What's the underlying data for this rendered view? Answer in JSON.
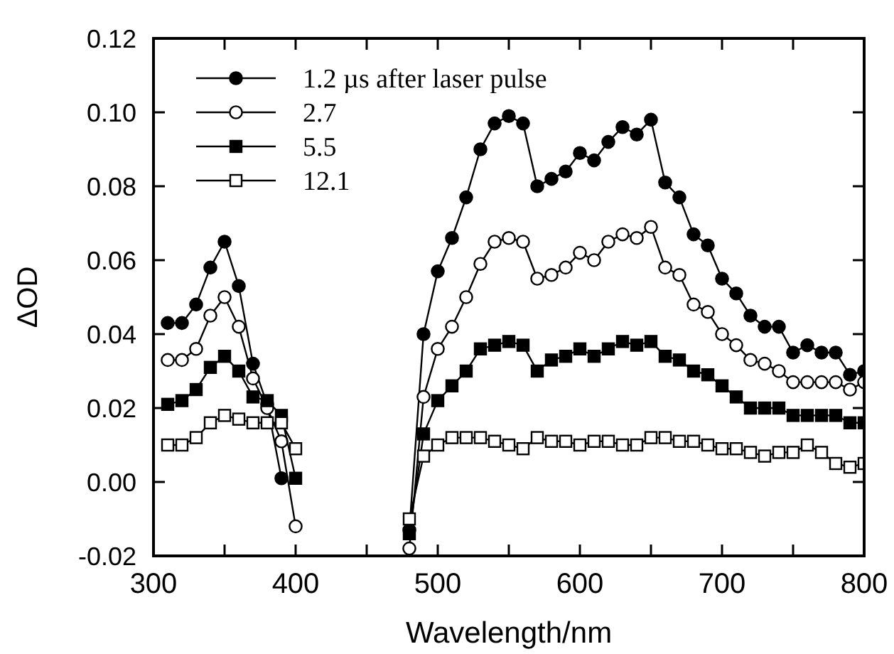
{
  "chart_data": {
    "type": "line",
    "xlabel": "Wavelength/nm",
    "ylabel": "ΔOD",
    "x": [
      310,
      320,
      330,
      340,
      350,
      360,
      370,
      380,
      390,
      400,
      440,
      480,
      490,
      500,
      510,
      520,
      530,
      540,
      550,
      560,
      570,
      580,
      590,
      600,
      610,
      620,
      630,
      640,
      650,
      660,
      670,
      680,
      690,
      700,
      710,
      720,
      730,
      740,
      750,
      760,
      770,
      780,
      790,
      800
    ],
    "series": [
      {
        "name": "1.2 µs after laser pulse",
        "color": "#000000",
        "marker": "circle",
        "values": [
          0.043,
          0.043,
          0.048,
          0.058,
          0.065,
          0.053,
          0.032,
          0.021,
          0.001,
          null,
          null,
          -0.013,
          0.04,
          0.057,
          0.066,
          0.077,
          0.09,
          0.097,
          0.099,
          0.097,
          0.08,
          0.082,
          0.084,
          0.089,
          0.087,
          0.092,
          0.096,
          0.094,
          0.098,
          0.081,
          0.077,
          0.067,
          0.064,
          0.055,
          0.051,
          0.045,
          0.042,
          0.042,
          0.035,
          0.037,
          0.035,
          0.035,
          0.029,
          0.03
        ]
      },
      {
        "name": "2.7",
        "color": "#000000",
        "marker": "circle",
        "values": [
          0.033,
          0.033,
          0.036,
          0.045,
          0.05,
          0.042,
          0.028,
          0.02,
          0.011,
          -0.012,
          null,
          -0.018,
          0.023,
          0.036,
          0.042,
          0.05,
          0.059,
          0.065,
          0.066,
          0.065,
          0.055,
          0.056,
          0.058,
          0.062,
          0.06,
          0.065,
          0.067,
          0.066,
          0.069,
          0.058,
          0.056,
          0.048,
          0.046,
          0.04,
          0.037,
          0.033,
          0.032,
          0.03,
          0.027,
          0.027,
          0.027,
          0.027,
          0.025,
          0.027
        ]
      },
      {
        "name": "5.5",
        "color": "#000000",
        "marker": "square",
        "values": [
          0.021,
          0.022,
          0.025,
          0.031,
          0.034,
          0.03,
          0.023,
          0.022,
          0.018,
          0.001,
          null,
          -0.014,
          0.013,
          0.022,
          0.026,
          0.03,
          0.036,
          0.037,
          0.038,
          0.037,
          0.03,
          0.033,
          0.034,
          0.036,
          0.034,
          0.036,
          0.038,
          0.037,
          0.038,
          0.034,
          0.033,
          0.03,
          0.029,
          0.026,
          0.023,
          0.02,
          0.02,
          0.02,
          0.018,
          0.018,
          0.018,
          0.018,
          0.016,
          0.016
        ]
      },
      {
        "name": "12.1",
        "color": "#000000",
        "marker": "square",
        "values": [
          0.01,
          0.01,
          0.012,
          0.016,
          0.018,
          0.017,
          0.016,
          0.016,
          0.016,
          0.009,
          null,
          -0.01,
          0.007,
          0.01,
          0.012,
          0.012,
          0.012,
          0.011,
          0.01,
          0.009,
          0.012,
          0.011,
          0.011,
          0.01,
          0.011,
          0.011,
          0.01,
          0.01,
          0.012,
          0.012,
          0.011,
          0.011,
          0.01,
          0.009,
          0.009,
          0.008,
          0.007,
          0.008,
          0.008,
          0.01,
          0.008,
          0.005,
          0.004,
          0.005
        ]
      }
    ],
    "xlim": [
      300,
      800
    ],
    "xticks": [
      300,
      {
        "value": 350,
        "label": null
      },
      400,
      {
        "value": 450,
        "label": null
      },
      500,
      {
        "value": 550,
        "label": null
      },
      600,
      {
        "value": 650,
        "label": null
      },
      700,
      {
        "value": 750,
        "label": null
      },
      800
    ],
    "ylim": [
      -0.02,
      0.12
    ],
    "yticks": [
      {
        "value": -0.02,
        "label": "-0.02"
      },
      {
        "value": 0,
        "label": "0.00"
      },
      {
        "value": 0.02,
        "label": "0.02"
      },
      {
        "value": 0.04,
        "label": "0.04"
      },
      {
        "value": 0.06,
        "label": "0.06"
      },
      {
        "value": 0.08,
        "label": "0.08"
      },
      {
        "value": 0.1,
        "label": "0.10"
      },
      {
        "value": 0.12,
        "label": "0.12"
      }
    ],
    "legend": "top left",
    "grid": false,
    "line_style": "solid"
  }
}
